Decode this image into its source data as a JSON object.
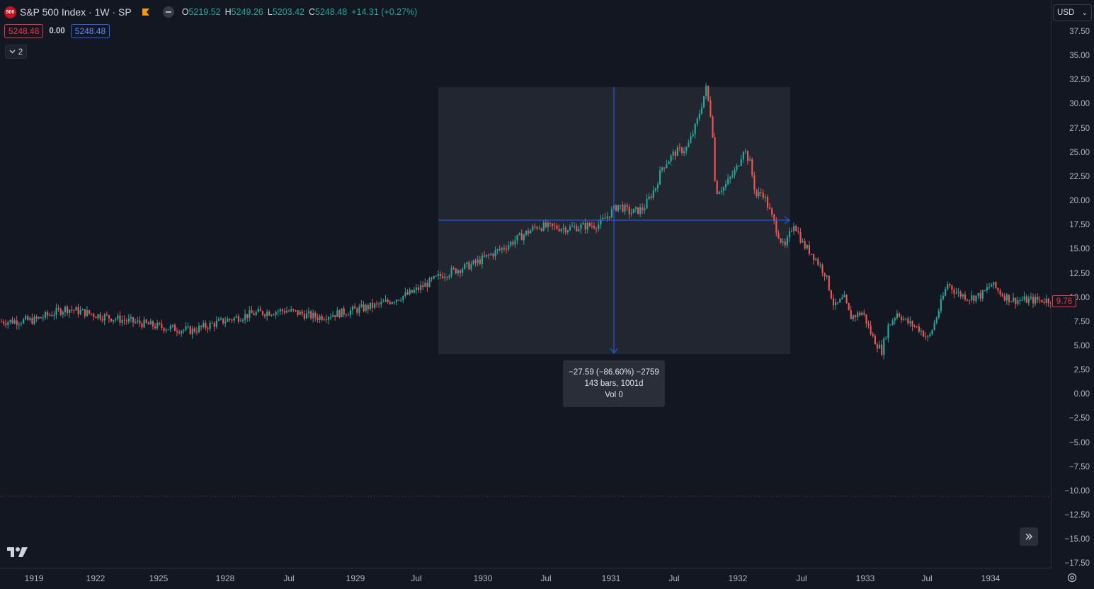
{
  "symbol": {
    "logo_text": "500",
    "title": "S&P 500 Index · 1W · SP",
    "ohlc": [
      {
        "k": "O",
        "v": "5219.52"
      },
      {
        "k": "H",
        "v": "5249.26"
      },
      {
        "k": "L",
        "v": "5203.42"
      },
      {
        "k": "C",
        "v": "5248.48"
      },
      {
        "k": "",
        "v": "+14.31 (+0.27%)"
      }
    ]
  },
  "row2": {
    "bid": "5248.48",
    "spread": "0.00",
    "ask": "5248.48"
  },
  "collapse": {
    "count": "2"
  },
  "currency": {
    "label": "USD",
    "chevron": "⌄"
  },
  "price_axis": {
    "ticks": [
      "37.50",
      "35.00",
      "32.50",
      "30.00",
      "27.50",
      "25.00",
      "22.50",
      "20.00",
      "17.50",
      "15.00",
      "12.50",
      "10.00",
      "7.50",
      "5.00",
      "2.50",
      "0.00",
      "−2.50",
      "−5.00",
      "−7.50",
      "−10.00",
      "−12.50",
      "−15.00",
      "−17.50"
    ],
    "last_price": "9.76"
  },
  "time_axis": {
    "ticks": [
      "1919",
      "1922",
      "1925",
      "1928",
      "Jul",
      "1929",
      "Jul",
      "1930",
      "Jul",
      "1931",
      "Jul",
      "1932",
      "Jul",
      "1933",
      "Jul",
      "1934"
    ]
  },
  "measure": {
    "line1": "−27.59 (−86.60%) −2759",
    "line2": "143 bars, 1001d",
    "line3": "Vol 0"
  },
  "colors": {
    "up": "#26a69a",
    "down": "#ef5350",
    "accent": "#2962ff",
    "background": "#131722"
  },
  "icons": {
    "flag": "flag-icon",
    "eye": "eye-icon",
    "chevron": "chevron-down-icon",
    "scroll": "double-chevron-right-icon",
    "settings": "settings-icon",
    "logo": "tradingview-logo"
  },
  "chart_data": {
    "type": "candlestick",
    "series_points_close": [
      [
        "1918",
        7.4
      ],
      [
        "1919",
        7.7
      ],
      [
        "1919.5",
        8.9
      ],
      [
        "1920",
        8.2
      ],
      [
        "1921",
        7.0
      ],
      [
        "1921.5",
        6.6
      ],
      [
        "1922",
        7.6
      ],
      [
        "1922.5",
        8.4
      ],
      [
        "1923",
        8.7
      ],
      [
        "1923.5",
        8.0
      ],
      [
        "1924",
        8.6
      ],
      [
        "1924.5",
        9.3
      ],
      [
        "1925",
        10.5
      ],
      [
        "1925.5",
        12.4
      ],
      [
        "1926",
        13.5
      ],
      [
        "1926.5",
        15.3
      ],
      [
        "1927",
        17.4
      ],
      [
        "1927.5",
        17.2
      ],
      [
        "1928",
        17.6
      ],
      [
        "1928.3",
        19.6
      ],
      [
        "1928.5",
        18.8
      ],
      [
        "1928.7",
        19.2
      ],
      [
        "1928.9",
        21.5
      ],
      [
        "1929",
        23.5
      ],
      [
        "1929.2",
        25.0
      ],
      [
        "1929.4",
        25.5
      ],
      [
        "1929.55",
        28.0
      ],
      [
        "1929.7",
        31.7
      ],
      [
        "1929.8",
        28.0
      ],
      [
        "1929.85",
        21.0
      ],
      [
        "1930",
        21.5
      ],
      [
        "1930.2",
        23.5
      ],
      [
        "1930.3",
        25.5
      ],
      [
        "1930.4",
        24.0
      ],
      [
        "1930.5",
        20.5
      ],
      [
        "1930.6",
        21.0
      ],
      [
        "1930.8",
        17.5
      ],
      [
        "1930.95",
        15.0
      ],
      [
        "1931.1",
        17.8
      ],
      [
        "1931.25",
        15.5
      ],
      [
        "1931.4",
        14.5
      ],
      [
        "1931.6",
        12.5
      ],
      [
        "1931.75",
        9.0
      ],
      [
        "1931.9",
        10.0
      ],
      [
        "1932.0",
        8.0
      ],
      [
        "1932.2",
        8.5
      ],
      [
        "1932.35",
        6.0
      ],
      [
        "1932.5",
        4.5
      ],
      [
        "1932.6",
        7.0
      ],
      [
        "1932.75",
        8.5
      ],
      [
        "1932.9",
        7.5
      ],
      [
        "1933.1",
        6.8
      ],
      [
        "1933.25",
        5.7
      ],
      [
        "1933.4",
        8.5
      ],
      [
        "1933.55",
        11.5
      ],
      [
        "1933.7",
        10.5
      ],
      [
        "1933.9",
        10.0
      ],
      [
        "1934.1",
        10.3
      ],
      [
        "1934.25",
        11.4
      ],
      [
        "1934.45",
        10.2
      ],
      [
        "1934.6",
        9.76
      ]
    ],
    "measure_range": {
      "from": "1929-09",
      "to": "1932-06",
      "change": "−27.59",
      "change_pct": "−86.60%",
      "bars": 143,
      "days": 1001
    },
    "ylim": [
      -17.5,
      37.5
    ],
    "grid": false
  }
}
